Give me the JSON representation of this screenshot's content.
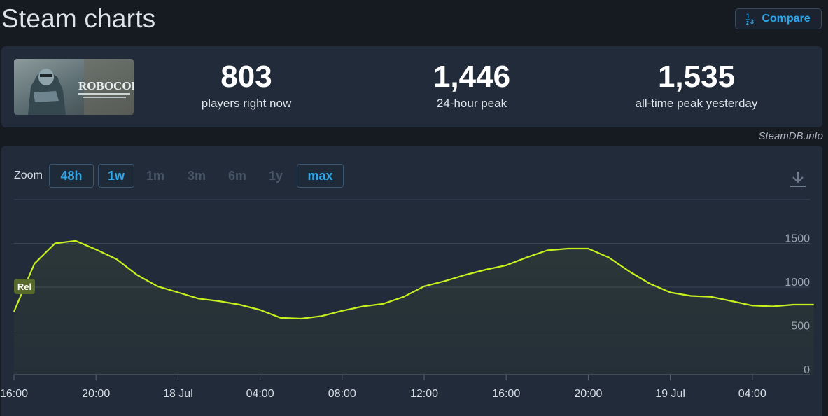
{
  "page": {
    "title": "Steam charts"
  },
  "compare": {
    "label": "Compare",
    "icon": "fraction-compare-icon"
  },
  "stats": [
    {
      "value": "803",
      "label": "players right now"
    },
    {
      "value": "1,446",
      "label": "24-hour peak"
    },
    {
      "value": "1,535",
      "label": "all-time peak yesterday"
    }
  ],
  "game": {
    "thumbnail_text": "ROBOCOP"
  },
  "credit": "SteamDB.info",
  "zoom": {
    "label": "Zoom",
    "buttons": [
      {
        "label": "48h",
        "state": "active"
      },
      {
        "label": "1w",
        "state": "active"
      },
      {
        "label": "1m",
        "state": "disabled"
      },
      {
        "label": "3m",
        "state": "disabled"
      },
      {
        "label": "6m",
        "state": "disabled"
      },
      {
        "label": "1y",
        "state": "disabled"
      },
      {
        "label": "max",
        "state": "active"
      }
    ]
  },
  "chart_data": {
    "type": "line",
    "series": [
      {
        "color": "#c8f01e",
        "values": [
          720,
          1270,
          1500,
          1530,
          1430,
          1320,
          1140,
          1010,
          940,
          870,
          840,
          800,
          740,
          650,
          640,
          670,
          730,
          780,
          810,
          890,
          1010,
          1070,
          1140,
          1200,
          1250,
          1340,
          1420,
          1440,
          1440,
          1340,
          1180,
          1040,
          940,
          900,
          890,
          840,
          790,
          780,
          800,
          800
        ]
      }
    ],
    "x_tick_labels": [
      "16:00",
      "20:00",
      "18 Jul",
      "04:00",
      "08:00",
      "12:00",
      "16:00",
      "20:00",
      "19 Jul",
      "04:00"
    ],
    "x_tick_index": [
      0,
      4,
      8,
      12,
      16,
      20,
      24,
      28,
      32,
      36
    ],
    "y_ticks": [
      0,
      500,
      1000,
      1500
    ],
    "ylim": [
      0,
      2000
    ],
    "grid": true,
    "annotation": {
      "label": "Rel",
      "at_index": 0,
      "at_value": 1000
    }
  },
  "colors": {
    "accent": "#2fa6e8",
    "line": "#c8f01e",
    "panel": "#212b39",
    "background": "#161a21"
  }
}
